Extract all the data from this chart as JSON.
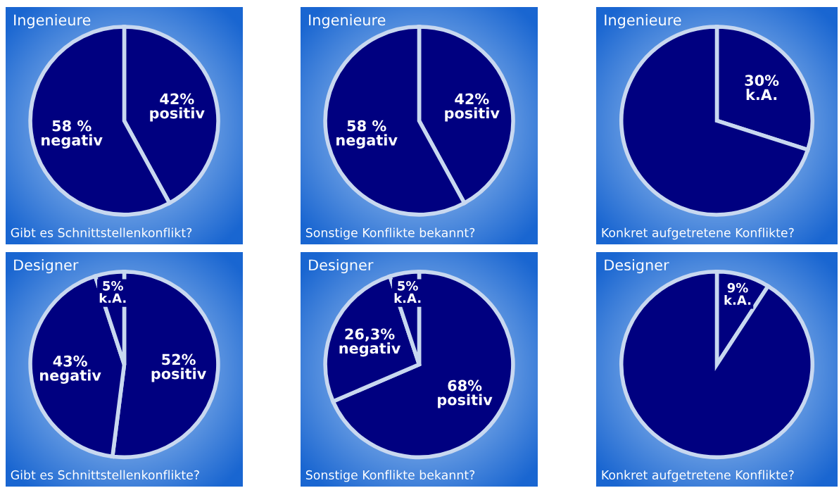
{
  "chart_data": [
    {
      "type": "pie",
      "title": "Ingenieure",
      "annotations": [
        "Gibt es Schnittstellenkonflikt?"
      ],
      "categories": [
        "positiv",
        "negativ"
      ],
      "values": [
        42,
        58
      ],
      "value_labels": [
        "42%",
        "58 %"
      ],
      "colors": [
        "#000080",
        "#000080"
      ]
    },
    {
      "type": "pie",
      "title": "Ingenieure",
      "annotations": [
        "Sonstige Konflikte bekannt?"
      ],
      "categories": [
        "positiv",
        "negativ"
      ],
      "values": [
        42,
        58
      ],
      "value_labels": [
        "42%",
        "58 %"
      ],
      "colors": [
        "#000080",
        "#000080"
      ]
    },
    {
      "type": "pie",
      "title": "Ingenieure",
      "annotations": [
        "Konkret aufgetretene Konflikte?"
      ],
      "categories": [
        "k.A.",
        null
      ],
      "values": [
        30,
        70
      ],
      "value_labels": [
        "30%",
        null
      ],
      "colors": [
        "#000080",
        "#000080"
      ]
    },
    {
      "type": "pie",
      "title": "Designer",
      "annotations": [
        "Gibt es Schnittstellenkonflikte?"
      ],
      "categories": [
        "positiv",
        "negativ",
        "k.A."
      ],
      "values": [
        52,
        43,
        5
      ],
      "value_labels": [
        "52%",
        "43%",
        "5%"
      ],
      "colors": [
        "#000080",
        "#000080",
        "#000080"
      ]
    },
    {
      "type": "pie",
      "title": "Designer",
      "annotations": [
        "Sonstige Konflikte bekannt?"
      ],
      "categories": [
        "positiv",
        "negativ",
        "k.A."
      ],
      "values": [
        68,
        26.3,
        5
      ],
      "value_labels": [
        "68%",
        "26,3%",
        "5%"
      ],
      "colors": [
        "#000080",
        "#000080",
        "#000080"
      ]
    },
    {
      "type": "pie",
      "title": "Designer",
      "annotations": [
        "Konkret aufgetretene Konflikte?"
      ],
      "categories": [
        "k.A.",
        null
      ],
      "values": [
        9,
        91
      ],
      "value_labels": [
        "9%",
        null
      ],
      "colors": [
        "#000080",
        "#000080"
      ]
    }
  ]
}
